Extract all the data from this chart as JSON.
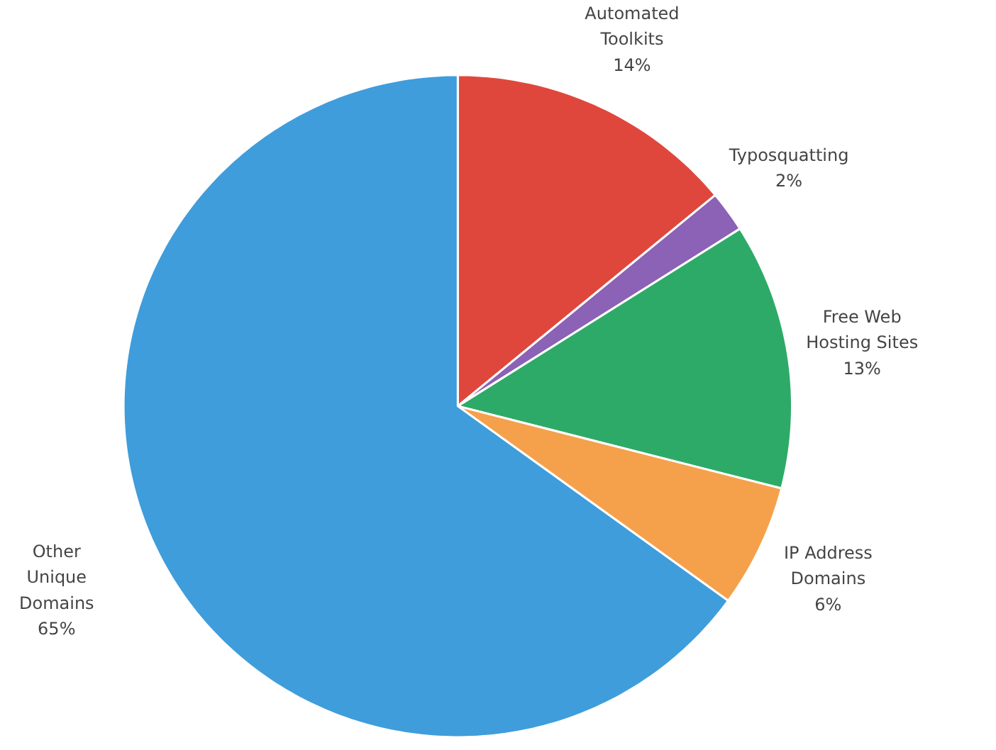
{
  "chart_data": {
    "type": "pie",
    "categories": [
      "Automated Toolkits",
      "Typosquatting",
      "Free Web Hosting Sites",
      "IP Address Domains",
      "Other Unique Domains"
    ],
    "values": [
      14,
      2,
      13,
      6,
      65
    ],
    "value_labels": [
      "14%",
      "2%",
      "13%",
      "6%",
      "65%"
    ],
    "colors": [
      "#e0473c",
      "#8b62b5",
      "#2eaa68",
      "#f5a14c",
      "#3f9ddb"
    ]
  }
}
